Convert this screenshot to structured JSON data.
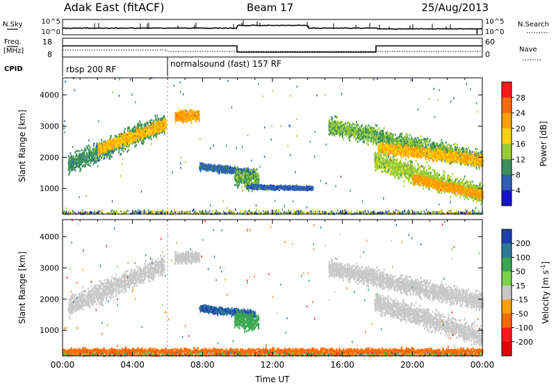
{
  "header": {
    "station": "Adak East (fitACF)",
    "beam": "Beam 17",
    "date": "25/Aug/2013"
  },
  "top_labels": {
    "nsky": "N.Sky",
    "nsearch": "N.Search",
    "freq_line1": "Freq.",
    "freq_line2": "[MHz]",
    "nave": "Nave",
    "cpid": "CPID",
    "noise_ticks_left": [
      "10^5",
      "10^0"
    ],
    "noise_ticks_right": [
      "10^5",
      "10^0"
    ],
    "freq_ticks": [
      "18",
      "8"
    ],
    "nave_ticks": [
      "60",
      "0"
    ]
  },
  "cpid_segments": [
    {
      "start_hour": 0,
      "label": "rbsp 200 RF"
    },
    {
      "start_hour": 6,
      "label": "normalsound (fast) 157 RF"
    }
  ],
  "colorbars": {
    "power": {
      "label": "Power [dB]",
      "ticks": [
        "28",
        "24",
        "20",
        "16",
        "12",
        "8",
        "4"
      ],
      "colors": [
        "#ff1a1a",
        "#ff6a00",
        "#ff9f00",
        "#ffd100",
        "#9acd32",
        "#3c8f5a",
        "#2e5fb5",
        "#1414c8"
      ]
    },
    "velocity": {
      "label": "Velocity [m s",
      "label_sup": "-1",
      "label_end": "]",
      "ticks": [
        "200",
        "100",
        "50",
        "15",
        "-15",
        "-50",
        "-100",
        "-200"
      ],
      "colors": [
        "#1f3fb0",
        "#2e7a9a",
        "#3aa651",
        "#79d24a",
        "#c8c8c8",
        "#ff9f00",
        "#ff6a00",
        "#ff1a1a",
        "#e00000"
      ]
    }
  },
  "chart_data": [
    {
      "type": "heatmap",
      "title": "Power",
      "xlabel": "",
      "ylabel": "Slant Range [km]",
      "x_range_hours": [
        0,
        24
      ],
      "ylim": [
        180,
        4550
      ],
      "yticks": [
        1000,
        2000,
        3000,
        4000
      ],
      "xticks_hours": [
        0,
        4,
        8,
        12,
        16,
        20,
        24
      ],
      "colorbar_range": [
        0,
        32
      ],
      "scatter_bands": [
        {
          "start_hour": 0.3,
          "end_hour": 5.8,
          "range_start_km": 1750,
          "range_end_km": 3100,
          "width_km": 450,
          "power_db": 10
        },
        {
          "start_hour": 2.0,
          "end_hour": 5.9,
          "range_start_km": 2250,
          "range_end_km": 3050,
          "width_km": 250,
          "power_db": 20
        },
        {
          "start_hour": 6.4,
          "end_hour": 7.8,
          "range_start_km": 3300,
          "range_end_km": 3350,
          "width_km": 250,
          "power_db": 22
        },
        {
          "start_hour": 7.8,
          "end_hour": 11.0,
          "range_start_km": 1700,
          "range_end_km": 1500,
          "width_km": 150,
          "power_db": 7
        },
        {
          "start_hour": 9.8,
          "end_hour": 11.2,
          "range_start_km": 1350,
          "range_end_km": 1250,
          "width_km": 400,
          "power_db": 12
        },
        {
          "start_hour": 10.5,
          "end_hour": 14.3,
          "range_start_km": 1050,
          "range_end_km": 1000,
          "width_km": 90,
          "power_db": 6
        },
        {
          "start_hour": 15.2,
          "end_hour": 24.0,
          "range_start_km": 3000,
          "range_end_km": 1900,
          "width_km": 400,
          "power_db": 12
        },
        {
          "start_hour": 18.0,
          "end_hour": 24.0,
          "range_start_km": 2300,
          "range_end_km": 1900,
          "width_km": 250,
          "power_db": 20
        },
        {
          "start_hour": 17.8,
          "end_hour": 24.0,
          "range_start_km": 1900,
          "range_end_km": 800,
          "width_km": 450,
          "power_db": 14
        },
        {
          "start_hour": 20.0,
          "end_hour": 24.0,
          "range_start_km": 1300,
          "range_end_km": 800,
          "width_km": 200,
          "power_db": 22
        }
      ]
    },
    {
      "type": "heatmap",
      "title": "Velocity",
      "xlabel": "Time UT",
      "ylabel": "Slant Range [km]",
      "x_range_hours": [
        0,
        24
      ],
      "xtick_labels": [
        "00:00",
        "04:00",
        "08:00",
        "12:00",
        "16:00",
        "20:00",
        "00:00"
      ],
      "ylim": [
        180,
        4550
      ],
      "yticks": [
        1000,
        2000,
        3000,
        4000
      ],
      "colorbar_range": [
        -200,
        200
      ],
      "scatter_bands": [
        {
          "start_hour": 0.3,
          "end_hour": 5.8,
          "range_start_km": 1750,
          "range_end_km": 3100,
          "width_km": 450,
          "velocity": 0
        },
        {
          "start_hour": 6.4,
          "end_hour": 7.8,
          "range_start_km": 3300,
          "range_end_km": 3350,
          "width_km": 250,
          "velocity": 0
        },
        {
          "start_hour": 7.8,
          "end_hour": 11.0,
          "range_start_km": 1700,
          "range_end_km": 1500,
          "width_km": 150,
          "velocity": 200
        },
        {
          "start_hour": 9.8,
          "end_hour": 11.2,
          "range_start_km": 1350,
          "range_end_km": 1250,
          "width_km": 400,
          "velocity": 80
        },
        {
          "start_hour": 15.2,
          "end_hour": 24.0,
          "range_start_km": 3000,
          "range_end_km": 1900,
          "width_km": 400,
          "velocity": 0
        },
        {
          "start_hour": 17.8,
          "end_hour": 24.0,
          "range_start_km": 1900,
          "range_end_km": 800,
          "width_km": 450,
          "velocity": 0
        },
        {
          "start_hour": 0.0,
          "end_hour": 24.0,
          "range_start_km": 300,
          "range_end_km": 300,
          "width_km": 150,
          "velocity": -60
        }
      ]
    }
  ]
}
